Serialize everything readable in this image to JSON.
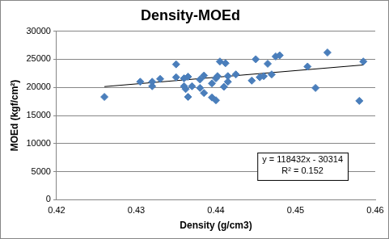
{
  "chart_data": {
    "type": "scatter",
    "title": "Density-MOEd",
    "x_label": "Density (g/cm3)",
    "y_label": "MOEd (kgf/cm²)",
    "x": [
      0.426,
      0.4305,
      0.432,
      0.432,
      0.433,
      0.435,
      0.435,
      0.436,
      0.436,
      0.4362,
      0.4365,
      0.4365,
      0.437,
      0.438,
      0.438,
      0.4385,
      0.4385,
      0.4395,
      0.4395,
      0.44,
      0.44,
      0.4402,
      0.4405,
      0.441,
      0.4412,
      0.4415,
      0.4415,
      0.4425,
      0.4445,
      0.445,
      0.4455,
      0.446,
      0.4465,
      0.447,
      0.4475,
      0.448,
      0.4515,
      0.4525,
      0.454,
      0.458,
      0.4585
    ],
    "values": [
      18300,
      21000,
      20200,
      21000,
      21500,
      24100,
      21800,
      21600,
      20200,
      19700,
      18300,
      21900,
      20200,
      21400,
      19900,
      22100,
      19000,
      18200,
      20700,
      21600,
      17700,
      22000,
      24600,
      20100,
      24300,
      21000,
      22000,
      22300,
      21200,
      25000,
      21800,
      22000,
      24200,
      22300,
      25500,
      25700,
      23700,
      19900,
      26200,
      17600,
      24600
    ],
    "color": "#4a7ebb",
    "marker": "diamond",
    "trendline": {
      "x": [
        0.426,
        0.4585
      ],
      "values": [
        20138,
        23987
      ],
      "color": "#000000",
      "line_style": "solid"
    },
    "annotations": [
      "y = 118432x - 30314",
      "R² = 0.152"
    ],
    "xlim": [
      0.42,
      0.46
    ],
    "xticks": [
      0.42,
      0.43,
      0.44,
      0.45,
      0.46
    ],
    "ylim": [
      0,
      30000
    ],
    "yticks": [
      0,
      5000,
      10000,
      15000,
      20000,
      25000,
      30000
    ],
    "grid": "y"
  }
}
